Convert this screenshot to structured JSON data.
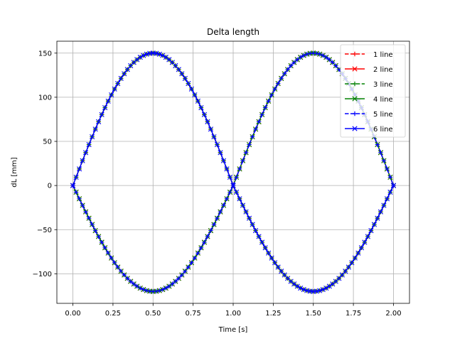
{
  "chart_data": {
    "type": "line",
    "title": "Delta length",
    "xlabel": "Time [s]",
    "ylabel": "dL [mm]",
    "xlim": [
      -0.1,
      2.1
    ],
    "ylim": [
      -133.5,
      163.5
    ],
    "xticks": [
      0.0,
      0.25,
      0.5,
      0.75,
      1.0,
      1.25,
      1.5,
      1.75,
      2.0
    ],
    "xtick_labels": [
      "0.00",
      "0.25",
      "0.50",
      "0.75",
      "1.00",
      "1.25",
      "1.50",
      "1.75",
      "2.00"
    ],
    "yticks": [
      -100,
      -50,
      0,
      50,
      100,
      150
    ],
    "ytick_labels": [
      "−100",
      "−50",
      "0",
      "50",
      "100",
      "150"
    ],
    "grid": true,
    "legend_position": "top-right",
    "x_range": [
      0.0,
      2.0
    ],
    "samples": 101,
    "curve_families": [
      {
        "name": "pos-first",
        "function": "piecewise-sine",
        "peak": 150,
        "trough": -120,
        "period": 2.0,
        "phase": 0
      },
      {
        "name": "neg-first",
        "function": "piecewise-sine",
        "peak": 150,
        "trough": -120,
        "period": 2.0,
        "phase": 1.0
      }
    ],
    "series": [
      {
        "name": "1 line",
        "color": "#ff0000",
        "linestyle": "dashed",
        "marker": "plus",
        "family": "pos-first"
      },
      {
        "name": "2 line",
        "color": "#ff0000",
        "linestyle": "solid",
        "marker": "x",
        "family": "neg-first"
      },
      {
        "name": "3 line",
        "color": "#008000",
        "linestyle": "dashed",
        "marker": "plus",
        "family": "pos-first"
      },
      {
        "name": "4 line",
        "color": "#008000",
        "linestyle": "solid",
        "marker": "x",
        "family": "neg-first"
      },
      {
        "name": "5 line",
        "color": "#0000ff",
        "linestyle": "dashed",
        "marker": "plus",
        "family": "neg-first"
      },
      {
        "name": "6 line",
        "color": "#0000ff",
        "linestyle": "solid",
        "marker": "x",
        "family": "pos-first"
      }
    ]
  }
}
